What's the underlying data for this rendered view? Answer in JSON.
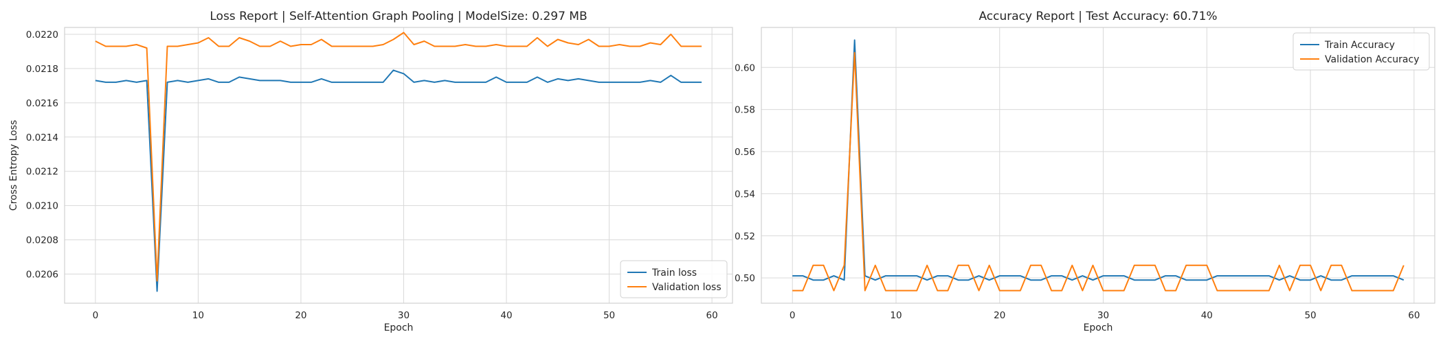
{
  "chart_data": [
    {
      "type": "line",
      "title": "Loss Report | Self-Attention Graph Pooling | ModelSize: 0.297 MB",
      "xlabel": "Epoch",
      "ylabel": "Cross Entropy Loss",
      "xlim": [
        -3,
        62
      ],
      "ylim": [
        0.02043,
        0.02204
      ],
      "xticks": [
        0,
        10,
        20,
        30,
        40,
        50,
        60
      ],
      "yticks": [
        0.0206,
        0.0208,
        0.021,
        0.0212,
        0.0214,
        0.0216,
        0.0218,
        0.022
      ],
      "ytick_decimals": 4,
      "grid": true,
      "legend_position": "lower-right",
      "x": [
        0,
        1,
        2,
        3,
        4,
        5,
        6,
        7,
        8,
        9,
        10,
        11,
        12,
        13,
        14,
        15,
        16,
        17,
        18,
        19,
        20,
        21,
        22,
        23,
        24,
        25,
        26,
        27,
        28,
        29,
        30,
        31,
        32,
        33,
        34,
        35,
        36,
        37,
        38,
        39,
        40,
        41,
        42,
        43,
        44,
        45,
        46,
        47,
        48,
        49,
        50,
        51,
        52,
        53,
        54,
        55,
        56,
        57,
        58,
        59
      ],
      "series": [
        {
          "name": "Train loss",
          "color": "#1f77b4",
          "values": [
            0.02173,
            0.02172,
            0.02172,
            0.02173,
            0.02172,
            0.02173,
            0.0205,
            0.02172,
            0.02173,
            0.02172,
            0.02173,
            0.02174,
            0.02172,
            0.02172,
            0.02175,
            0.02174,
            0.02173,
            0.02173,
            0.02173,
            0.02172,
            0.02172,
            0.02172,
            0.02174,
            0.02172,
            0.02172,
            0.02172,
            0.02172,
            0.02172,
            0.02172,
            0.02179,
            0.02177,
            0.02172,
            0.02173,
            0.02172,
            0.02173,
            0.02172,
            0.02172,
            0.02172,
            0.02172,
            0.02175,
            0.02172,
            0.02172,
            0.02172,
            0.02175,
            0.02172,
            0.02174,
            0.02173,
            0.02174,
            0.02173,
            0.02172,
            0.02172,
            0.02172,
            0.02172,
            0.02172,
            0.02173,
            0.02172,
            0.02176,
            0.02172,
            0.02172,
            0.02172
          ]
        },
        {
          "name": "Validation loss",
          "color": "#ff7f0e",
          "values": [
            0.02196,
            0.02193,
            0.02193,
            0.02193,
            0.02194,
            0.02192,
            0.02056,
            0.02193,
            0.02193,
            0.02194,
            0.02195,
            0.02198,
            0.02193,
            0.02193,
            0.02198,
            0.02196,
            0.02193,
            0.02193,
            0.02196,
            0.02193,
            0.02194,
            0.02194,
            0.02197,
            0.02193,
            0.02193,
            0.02193,
            0.02193,
            0.02193,
            0.02194,
            0.02197,
            0.02201,
            0.02194,
            0.02196,
            0.02193,
            0.02193,
            0.02193,
            0.02194,
            0.02193,
            0.02193,
            0.02194,
            0.02193,
            0.02193,
            0.02193,
            0.02198,
            0.02193,
            0.02197,
            0.02195,
            0.02194,
            0.02197,
            0.02193,
            0.02193,
            0.02194,
            0.02193,
            0.02193,
            0.02195,
            0.02194,
            0.022,
            0.02193,
            0.02193,
            0.02193
          ]
        }
      ]
    },
    {
      "type": "line",
      "title": "Accuracy Report | Test Accuracy: 60.71%",
      "xlabel": "Epoch",
      "ylabel": "",
      "xlim": [
        -3,
        62
      ],
      "ylim": [
        0.488,
        0.619
      ],
      "xticks": [
        0,
        10,
        20,
        30,
        40,
        50,
        60
      ],
      "yticks": [
        0.5,
        0.52,
        0.54,
        0.56,
        0.58,
        0.6
      ],
      "ytick_decimals": 2,
      "grid": true,
      "legend_position": "upper-right",
      "x": [
        0,
        1,
        2,
        3,
        4,
        5,
        6,
        7,
        8,
        9,
        10,
        11,
        12,
        13,
        14,
        15,
        16,
        17,
        18,
        19,
        20,
        21,
        22,
        23,
        24,
        25,
        26,
        27,
        28,
        29,
        30,
        31,
        32,
        33,
        34,
        35,
        36,
        37,
        38,
        39,
        40,
        41,
        42,
        43,
        44,
        45,
        46,
        47,
        48,
        49,
        50,
        51,
        52,
        53,
        54,
        55,
        56,
        57,
        58,
        59
      ],
      "series": [
        {
          "name": "Train Accuracy",
          "color": "#1f77b4",
          "values": [
            0.501,
            0.501,
            0.499,
            0.499,
            0.501,
            0.499,
            0.613,
            0.501,
            0.499,
            0.501,
            0.501,
            0.501,
            0.501,
            0.499,
            0.501,
            0.501,
            0.499,
            0.499,
            0.501,
            0.499,
            0.501,
            0.501,
            0.501,
            0.499,
            0.499,
            0.501,
            0.501,
            0.499,
            0.501,
            0.499,
            0.501,
            0.501,
            0.501,
            0.499,
            0.499,
            0.499,
            0.501,
            0.501,
            0.499,
            0.499,
            0.499,
            0.501,
            0.501,
            0.501,
            0.501,
            0.501,
            0.501,
            0.499,
            0.501,
            0.499,
            0.499,
            0.501,
            0.499,
            0.499,
            0.501,
            0.501,
            0.501,
            0.501,
            0.501,
            0.499
          ]
        },
        {
          "name": "Validation Accuracy",
          "color": "#ff7f0e",
          "values": [
            0.494,
            0.494,
            0.506,
            0.506,
            0.494,
            0.506,
            0.607,
            0.494,
            0.506,
            0.494,
            0.494,
            0.494,
            0.494,
            0.506,
            0.494,
            0.494,
            0.506,
            0.506,
            0.494,
            0.506,
            0.494,
            0.494,
            0.494,
            0.506,
            0.506,
            0.494,
            0.494,
            0.506,
            0.494,
            0.506,
            0.494,
            0.494,
            0.494,
            0.506,
            0.506,
            0.506,
            0.494,
            0.494,
            0.506,
            0.506,
            0.506,
            0.494,
            0.494,
            0.494,
            0.494,
            0.494,
            0.494,
            0.506,
            0.494,
            0.506,
            0.506,
            0.494,
            0.506,
            0.506,
            0.494,
            0.494,
            0.494,
            0.494,
            0.494,
            0.506
          ]
        }
      ]
    }
  ]
}
